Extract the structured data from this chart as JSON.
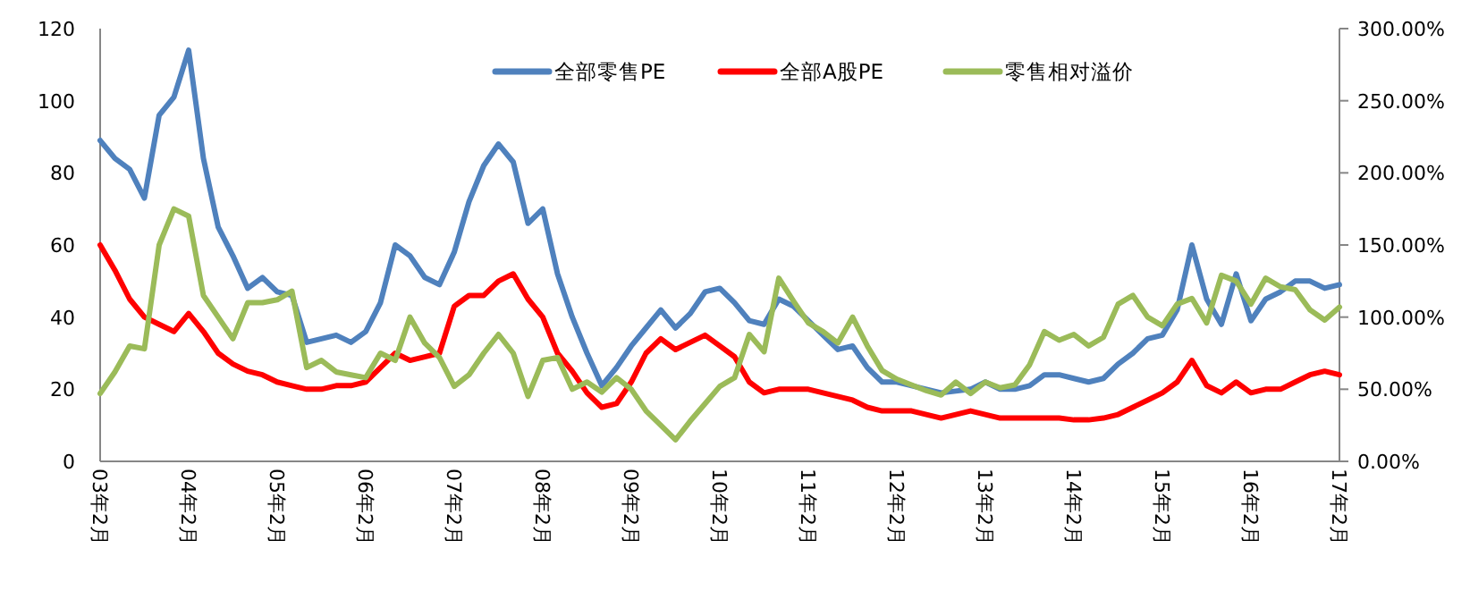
{
  "chart_data": {
    "type": "line",
    "legend": "top",
    "categories": [
      "03年2月",
      null,
      null,
      null,
      null,
      null,
      "04年2月",
      null,
      null,
      null,
      null,
      null,
      "05年2月",
      null,
      null,
      null,
      null,
      null,
      "06年2月",
      null,
      null,
      null,
      null,
      null,
      "07年2月",
      null,
      null,
      null,
      null,
      null,
      "08年2月",
      null,
      null,
      null,
      null,
      null,
      "09年2月",
      null,
      null,
      null,
      null,
      null,
      "10年2月",
      null,
      null,
      null,
      null,
      null,
      "11年2月",
      null,
      null,
      null,
      null,
      null,
      "12年2月",
      null,
      null,
      null,
      null,
      null,
      "13年2月",
      null,
      null,
      null,
      null,
      null,
      "14年2月",
      null,
      null,
      null,
      null,
      null,
      "15年2月",
      null,
      null,
      null,
      null,
      null,
      "16年2月",
      null,
      null,
      null,
      null,
      null,
      "17年2月"
    ],
    "ylim": [
      0,
      120
    ],
    "yticks": [
      0,
      20,
      40,
      60,
      80,
      100,
      120
    ],
    "y2lim": [
      0,
      300
    ],
    "y2ticks": [
      {
        "value": 0,
        "label": "0.00%"
      },
      {
        "value": 50,
        "label": "50.00%"
      },
      {
        "value": 100,
        "label": "100.00%"
      },
      {
        "value": 150,
        "label": "150.00%"
      },
      {
        "value": 200,
        "label": "200.00%"
      },
      {
        "value": 250,
        "label": "250.00%"
      },
      {
        "value": 300,
        "label": "300.00%"
      }
    ],
    "series": [
      {
        "name": "全部零售PE",
        "color": "#4f81bd",
        "values": [
          89,
          84,
          81,
          73,
          96,
          101,
          114,
          84,
          65,
          57,
          48,
          51,
          47,
          46,
          33,
          34,
          35,
          33,
          36,
          44,
          60,
          57,
          51,
          49,
          58,
          72,
          82,
          88,
          83,
          66,
          70,
          52,
          40,
          30,
          21,
          26,
          32,
          37,
          42,
          37,
          41,
          47,
          48,
          44,
          39,
          38,
          45,
          43,
          39,
          35,
          31,
          32,
          26,
          22,
          22,
          21,
          20,
          19,
          19.5,
          20,
          22,
          20,
          20,
          21,
          24,
          24,
          23,
          22,
          23,
          27,
          30,
          34,
          35,
          42,
          60,
          45,
          38,
          52,
          39,
          45,
          47,
          50,
          50,
          48,
          49
        ]
      },
      {
        "name": "全部A股PE",
        "color": "#ff0000",
        "values": [
          60,
          53,
          45,
          40,
          38,
          36,
          41,
          36,
          30,
          27,
          25,
          24,
          22,
          21,
          20,
          20,
          21,
          21,
          22,
          26,
          30,
          28,
          29,
          30,
          43,
          46,
          46,
          50,
          52,
          45,
          40,
          30,
          25,
          19,
          15,
          16,
          22,
          30,
          34,
          31,
          33,
          35,
          32,
          29,
          22,
          19,
          20,
          20,
          20,
          19,
          18,
          17,
          15,
          14,
          14,
          14,
          13,
          12,
          13,
          14,
          13,
          12,
          12,
          12,
          12,
          12,
          11.5,
          11.5,
          12,
          13,
          15,
          17,
          19,
          22,
          28,
          21,
          19,
          22,
          19,
          20,
          20,
          22,
          24,
          25,
          24
        ]
      },
      {
        "name": "零售相对溢价",
        "color": "#9bbb59",
        "axis": "y2",
        "values": [
          47,
          62,
          80,
          78,
          150,
          175,
          170,
          115,
          100,
          85,
          110,
          110,
          112,
          118,
          65,
          70,
          62,
          60,
          58,
          75,
          70,
          100,
          82,
          72,
          52,
          60,
          75,
          88,
          75,
          45,
          70,
          72,
          50,
          55,
          48,
          58,
          50,
          35,
          25,
          15,
          28,
          40,
          52,
          58,
          88,
          76,
          127,
          111,
          96,
          90,
          82,
          100,
          80,
          63,
          57,
          53,
          49,
          46,
          55,
          47,
          55,
          51,
          53,
          67,
          90,
          84,
          88,
          80,
          86,
          109,
          115,
          100,
          94,
          109,
          113,
          96,
          129,
          125,
          109,
          127,
          121,
          119,
          105,
          98,
          107
        ]
      }
    ]
  }
}
